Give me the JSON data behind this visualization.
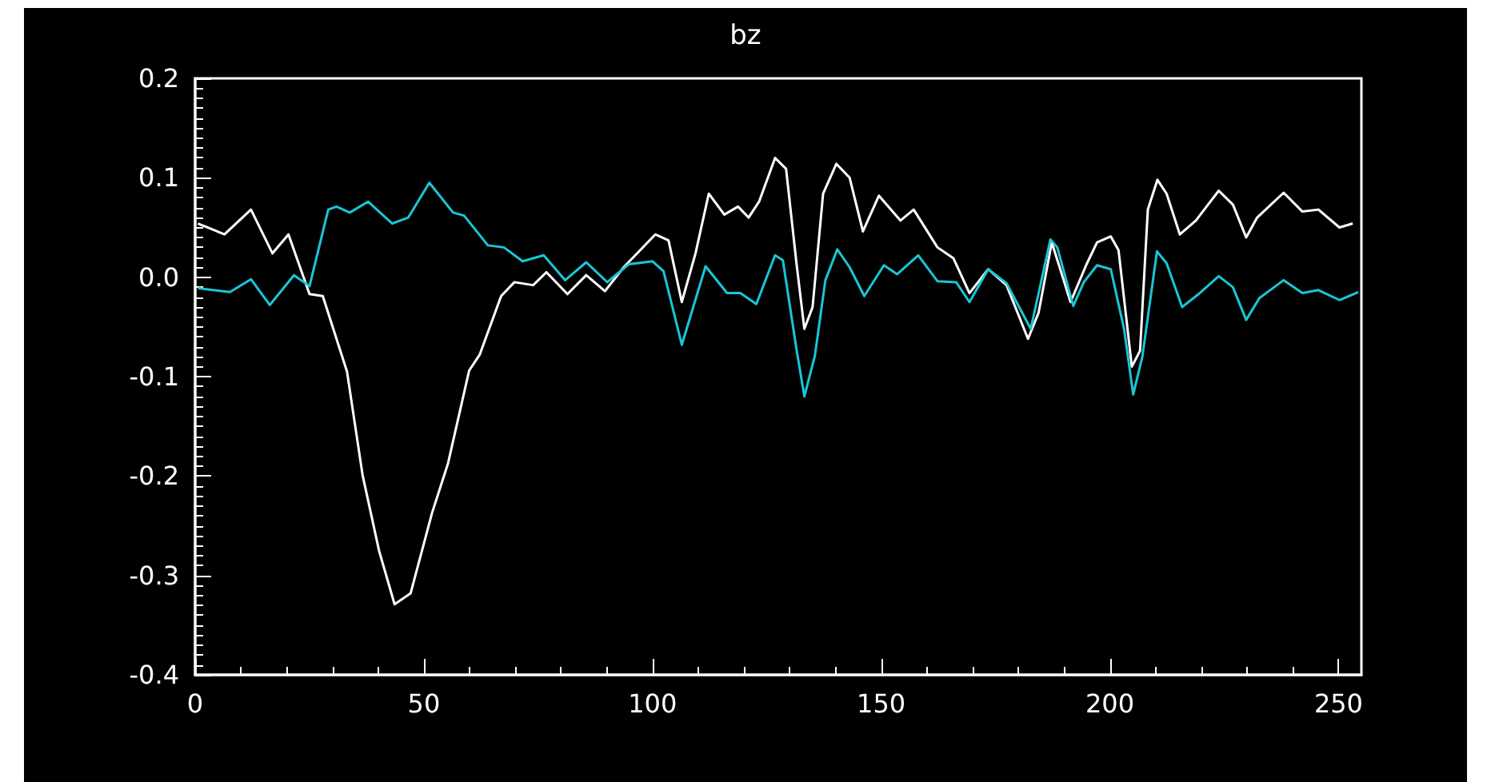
{
  "chart_data": {
    "type": "line",
    "title": "bz",
    "xlim": [
      0,
      255
    ],
    "xticks": [
      0,
      50,
      100,
      150,
      200,
      250
    ],
    "ylim": [
      -0.4,
      0.2
    ],
    "yticks": [
      -0.4,
      -0.3,
      -0.2,
      -0.1,
      {
        "value": 0,
        "label": "0.0"
      },
      0.1,
      0.2
    ],
    "grid": false,
    "marker": "none",
    "line_style": "solid",
    "series": [
      {
        "color": "#ffffff",
        "x": [
          0.6,
          6.4,
          12.2,
          16.9,
          20.4,
          25.0,
          27.9,
          33.2,
          36.6,
          40.2,
          43.6,
          47.1,
          51.8,
          55.3,
          59.9,
          62.2,
          66.9,
          69.8,
          73.9,
          76.8,
          81.4,
          85.5,
          89.6,
          93.7,
          100.6,
          103.5,
          106.4,
          109.4,
          112.3,
          115.7,
          118.7,
          121.0,
          123.3,
          126.8,
          129.2,
          131.5,
          133.2,
          135.0,
          137.3,
          140.2,
          143.1,
          146.0,
          149.5,
          154.2,
          157.1,
          162.3,
          165.8,
          169.3,
          173.4,
          177.4,
          182.1,
          184.4,
          187.3,
          191.4,
          194.9,
          197.2,
          200.2,
          201.9,
          204.8,
          206.6,
          208.3,
          210.4,
          212.4,
          215.3,
          218.8,
          223.8,
          226.9,
          229.8,
          232.2,
          238.0,
          242.1,
          245.6,
          250.2,
          253.1
        ],
        "values": [
          0.054,
          0.043,
          0.068,
          0.024,
          0.043,
          -0.017,
          -0.019,
          -0.095,
          -0.199,
          -0.275,
          -0.329,
          -0.318,
          -0.237,
          -0.187,
          -0.094,
          -0.078,
          -0.019,
          -0.005,
          -0.008,
          0.005,
          -0.017,
          0.002,
          -0.014,
          0.01,
          0.043,
          0.037,
          -0.025,
          0.024,
          0.084,
          0.063,
          0.071,
          0.06,
          0.076,
          0.12,
          0.109,
          0.013,
          -0.052,
          -0.03,
          0.084,
          0.114,
          0.1,
          0.046,
          0.082,
          0.057,
          0.068,
          0.03,
          0.019,
          -0.016,
          0.008,
          -0.008,
          -0.062,
          -0.036,
          0.035,
          -0.025,
          0.013,
          0.035,
          0.041,
          0.027,
          -0.09,
          -0.074,
          0.068,
          0.098,
          0.084,
          0.043,
          0.057,
          0.087,
          0.073,
          0.04,
          0.06,
          0.085,
          0.066,
          0.068,
          0.05,
          0.054
        ]
      },
      {
        "color": "#19c6d6",
        "x": [
          0.6,
          7.6,
          12.2,
          16.3,
          21.6,
          25.0,
          29.1,
          30.9,
          33.8,
          37.8,
          43.1,
          46.6,
          51.2,
          56.4,
          58.8,
          64.0,
          67.5,
          71.6,
          76.2,
          80.9,
          85.5,
          90.1,
          94.8,
          100.0,
          102.4,
          106.4,
          111.6,
          116.3,
          119.2,
          122.7,
          126.8,
          128.5,
          131.5,
          133.2,
          135.5,
          137.8,
          140.4,
          143.1,
          146.3,
          150.6,
          153.5,
          158.1,
          162.3,
          166.4,
          169.3,
          173.4,
          177.4,
          182.7,
          187.0,
          188.5,
          192.0,
          194.3,
          197.2,
          200.2,
          203.1,
          205.1,
          207.1,
          210.3,
          212.4,
          215.8,
          219.4,
          223.8,
          226.9,
          229.8,
          232.7,
          238.0,
          242.1,
          245.6,
          250.2,
          254.3
        ],
        "values": [
          -0.011,
          -0.015,
          -0.002,
          -0.028,
          0.002,
          -0.009,
          0.068,
          0.071,
          0.065,
          0.076,
          0.054,
          0.06,
          0.095,
          0.065,
          0.062,
          0.032,
          0.03,
          0.016,
          0.022,
          -0.003,
          0.015,
          -0.005,
          0.013,
          0.016,
          0.006,
          -0.068,
          0.011,
          -0.016,
          -0.016,
          -0.027,
          0.022,
          0.017,
          -0.073,
          -0.12,
          -0.079,
          -0.003,
          0.028,
          0.01,
          -0.019,
          0.012,
          0.003,
          0.022,
          -0.004,
          -0.005,
          -0.025,
          0.008,
          -0.006,
          -0.052,
          0.038,
          0.03,
          -0.029,
          -0.005,
          0.012,
          0.008,
          -0.052,
          -0.118,
          -0.08,
          0.026,
          0.014,
          -0.03,
          -0.017,
          0.001,
          -0.01,
          -0.043,
          -0.021,
          -0.003,
          -0.016,
          -0.013,
          -0.023,
          -0.015
        ]
      }
    ]
  }
}
